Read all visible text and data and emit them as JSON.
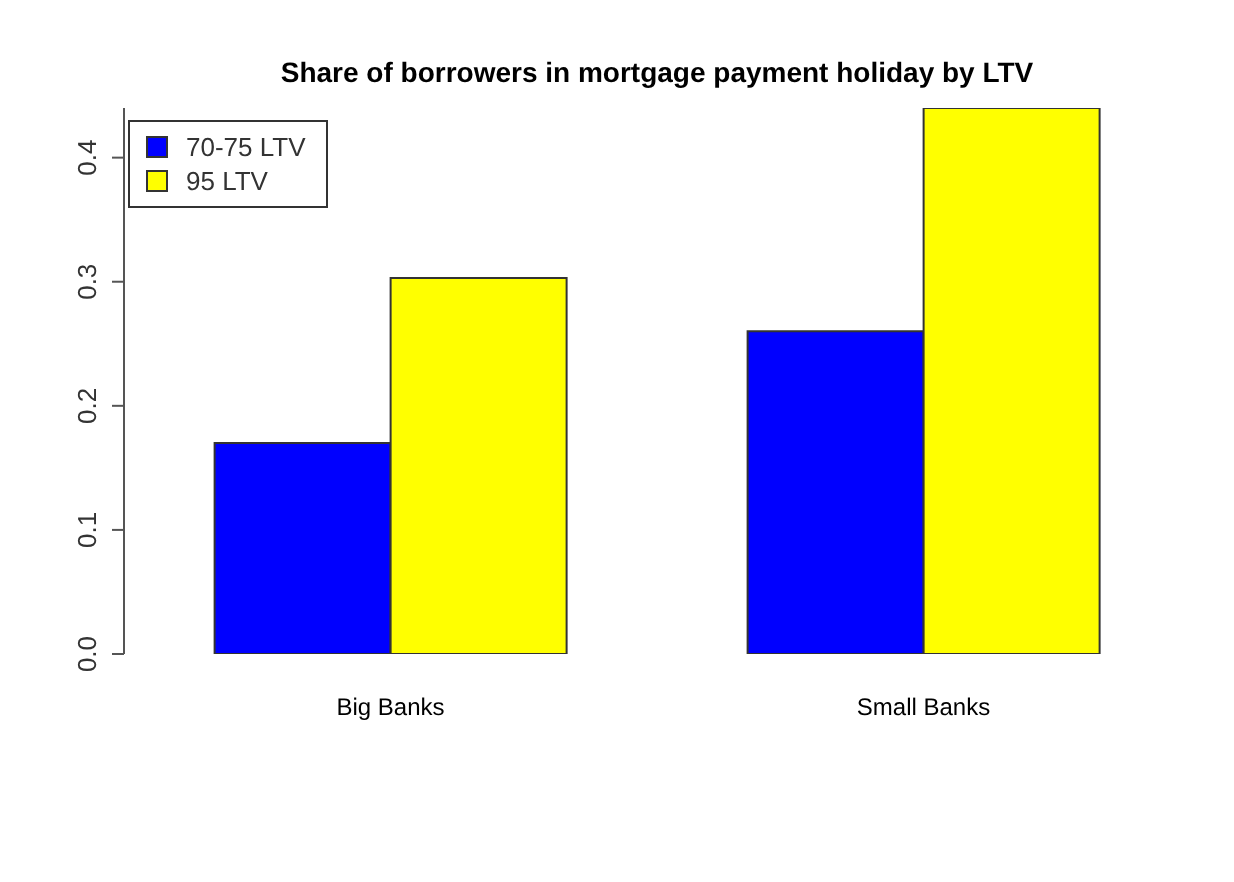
{
  "chart_data": {
    "type": "bar",
    "title": "Share of borrowers in mortgage payment holiday by LTV",
    "categories": [
      "Big Banks",
      "Small Banks"
    ],
    "series": [
      {
        "name": "70-75 LTV",
        "color": "#0000ff",
        "values": [
          0.17,
          0.26
        ]
      },
      {
        "name": "95 LTV",
        "color": "#ffff00",
        "values": [
          0.303,
          0.44
        ]
      }
    ],
    "ylim": [
      0,
      0.44
    ],
    "yticks": [
      {
        "value": 0,
        "label": "0.0"
      },
      {
        "value": 0.1,
        "label": "0.1"
      },
      {
        "value": 0.2,
        "label": "0.2"
      },
      {
        "value": 0.3,
        "label": "0.3"
      },
      {
        "value": 0.4,
        "label": "0.4"
      }
    ],
    "grid": false,
    "legend": "top left"
  }
}
